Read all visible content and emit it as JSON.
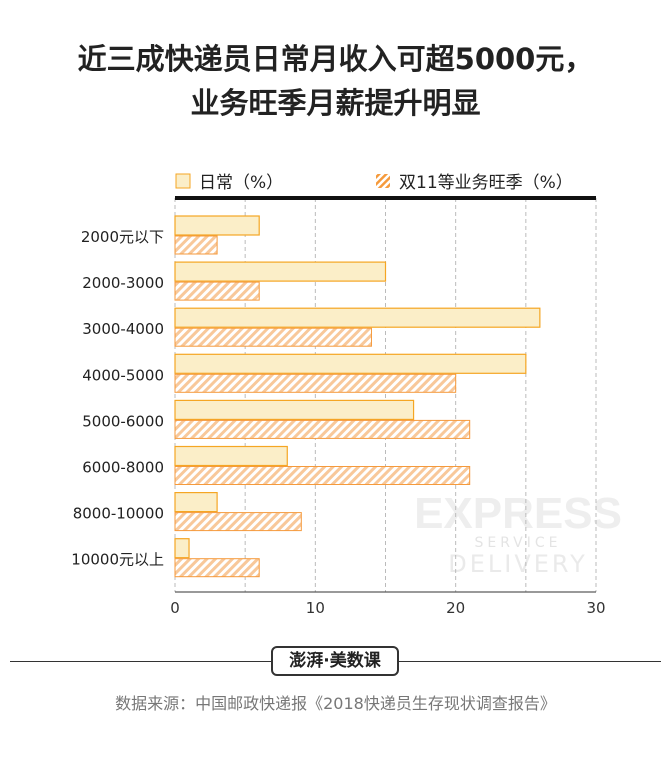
{
  "title_line1": "近三成快递员日常月收入可超5000元，",
  "title_line2": "业务旺季月薪提升明显",
  "colors": {
    "daily_fill": "#fbeec8",
    "daily_stroke": "#f5a623",
    "peak_stroke": "#f59a3c",
    "axis": "#111111",
    "grid": "#bbbbbb"
  },
  "chart_data": {
    "type": "bar",
    "orientation": "horizontal",
    "categories": [
      "2000元以下",
      "2000-3000",
      "3000-4000",
      "4000-5000",
      "5000-6000",
      "6000-8000",
      "8000-10000",
      "10000元以上"
    ],
    "series": [
      {
        "name": "日常（%）",
        "values": [
          6,
          15,
          26,
          25,
          17,
          8,
          3,
          1
        ]
      },
      {
        "name": "双11等业务旺季（%）",
        "values": [
          3,
          6,
          14,
          20,
          21,
          21,
          9,
          6
        ]
      }
    ],
    "xlim": [
      0,
      30
    ],
    "xticks": [
      0,
      10,
      20,
      30
    ],
    "grid": true,
    "legend": "top"
  },
  "watermark": {
    "line1": "EXPRESS",
    "line2": "SERVICE",
    "line3": "DELIVERY"
  },
  "logo_text": "澎湃·美数课",
  "source": "数据来源：中国邮政快递报《2018快递员生存现状调查报告》"
}
